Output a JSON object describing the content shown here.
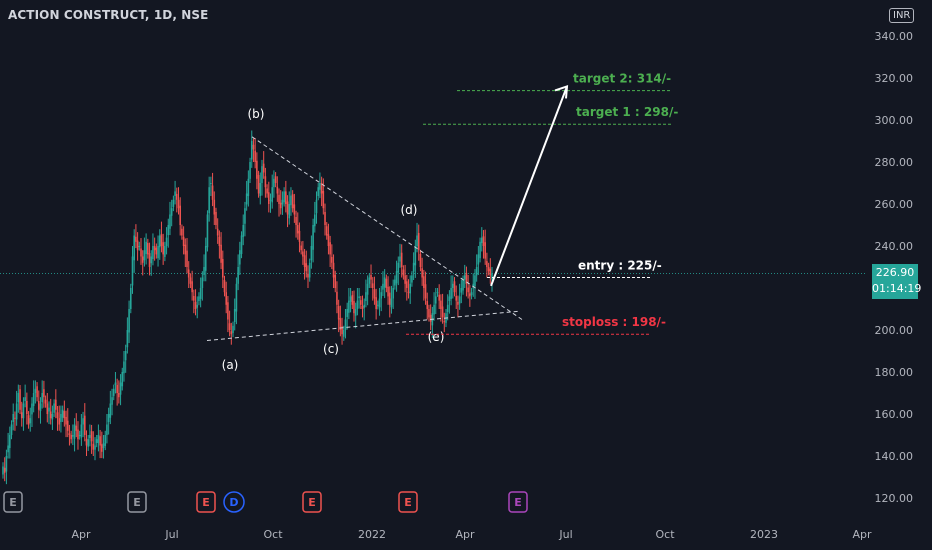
{
  "symbol_title": "ACTION CONSTRUCT, 1D, NSE",
  "currency": "INR",
  "last_price": {
    "value": "226.90",
    "countdown": "01:14:19"
  },
  "colors": {
    "background": "#131722",
    "up": "#26a69a",
    "down": "#ef5350",
    "target": "#4caf50",
    "stoploss": "#f23645",
    "text": "#d1d4dc",
    "annotation": "#ffffff"
  },
  "chart_data": {
    "type": "candlestick",
    "title": "ACTION CONSTRUCT, 1D, NSE",
    "y_axis": {
      "range": [
        110,
        350
      ],
      "ticks": [
        "340.00",
        "320.00",
        "300.00",
        "280.00",
        "260.00",
        "240.00",
        "220.00",
        "200.00",
        "180.00",
        "160.00",
        "140.00",
        "120.00"
      ],
      "position": "right"
    },
    "x_axis": {
      "ticks": [
        "Apr",
        "Jul",
        "Oct",
        "2022",
        "Apr",
        "Jul",
        "Oct",
        "2023",
        "Apr"
      ]
    },
    "wave_labels": [
      {
        "label": "(a)",
        "price": 198
      },
      {
        "label": "(b)",
        "price": 292
      },
      {
        "label": "(c)",
        "price": 199
      },
      {
        "label": "(d)",
        "price": 248
      },
      {
        "label": "(e)",
        "price": 202
      }
    ],
    "levels": [
      {
        "label": "target 2: 314/-",
        "price": 314,
        "color": "#4caf50"
      },
      {
        "label": "target 1 : 298/-",
        "price": 298,
        "color": "#4caf50"
      },
      {
        "label": "entry : 225/-",
        "price": 225,
        "color": "#ffffff"
      },
      {
        "label": "stoploss : 198/-",
        "price": 198,
        "color": "#f23645"
      }
    ],
    "event_markers": [
      {
        "letter": "E",
        "color": "#9598a1"
      },
      {
        "letter": "E",
        "color": "#9598a1"
      },
      {
        "letter": "E",
        "color": "#ef5350"
      },
      {
        "letter": "D",
        "color": "#2962ff"
      },
      {
        "letter": "E",
        "color": "#ef5350"
      },
      {
        "letter": "E",
        "color": "#ef5350"
      },
      {
        "letter": "E",
        "color": "#ab47bc"
      }
    ],
    "approx_daily_closes": [
      135,
      132,
      140,
      145,
      150,
      155,
      160,
      158,
      165,
      170,
      162,
      158,
      165,
      168,
      160,
      155,
      158,
      165,
      170,
      172,
      168,
      162,
      165,
      170,
      168,
      165,
      160,
      163,
      158,
      160,
      165,
      162,
      158,
      155,
      160,
      162,
      158,
      155,
      152,
      150,
      148,
      150,
      155,
      152,
      148,
      150,
      155,
      158,
      150,
      145,
      148,
      150,
      147,
      143,
      145,
      148,
      150,
      145,
      142,
      146,
      150,
      155,
      160,
      165,
      168,
      172,
      175,
      170,
      168,
      175,
      180,
      185,
      190,
      200,
      210,
      220,
      235,
      245,
      242,
      238,
      240,
      235,
      232,
      238,
      242,
      236,
      230,
      235,
      240,
      238,
      236,
      240,
      245,
      240,
      236,
      240,
      244,
      250,
      255,
      258,
      262,
      266,
      262,
      258,
      250,
      245,
      240,
      236,
      230,
      225,
      222,
      218,
      214,
      210,
      212,
      216,
      220,
      225,
      230,
      240,
      255,
      268,
      270,
      262,
      255,
      250,
      245,
      240,
      232,
      225,
      218,
      212,
      205,
      200,
      198,
      202,
      210,
      222,
      230,
      238,
      245,
      250,
      258,
      265,
      272,
      280,
      290,
      286,
      280,
      272,
      265,
      270,
      278,
      275,
      268,
      265,
      260,
      262,
      268,
      272,
      270,
      265,
      260,
      258,
      262,
      266,
      260,
      255,
      260,
      264,
      258,
      255,
      250,
      246,
      242,
      238,
      235,
      230,
      228,
      225,
      232,
      240,
      250,
      255,
      262,
      268,
      270,
      265,
      258,
      250,
      245,
      240,
      236,
      232,
      225,
      220,
      212,
      205,
      200,
      198,
      200,
      205,
      210,
      214,
      216,
      212,
      208,
      210,
      214,
      216,
      212,
      210,
      212,
      218,
      222,
      225,
      224,
      220,
      215,
      210,
      212,
      215,
      218,
      222,
      225,
      220,
      216,
      212,
      215,
      220,
      224,
      228,
      232,
      235,
      230,
      226,
      222,
      220,
      218,
      222,
      226,
      232,
      240,
      245,
      238,
      230,
      225,
      220,
      215,
      210,
      206,
      204,
      208,
      212,
      216,
      218,
      214,
      210,
      206,
      204,
      208,
      212,
      216,
      220,
      222,
      218,
      214,
      212,
      216,
      220,
      224,
      226,
      222,
      218,
      216,
      218,
      222,
      226,
      230,
      236,
      242,
      244,
      240,
      234,
      230,
      228,
      226,
      227
    ]
  }
}
